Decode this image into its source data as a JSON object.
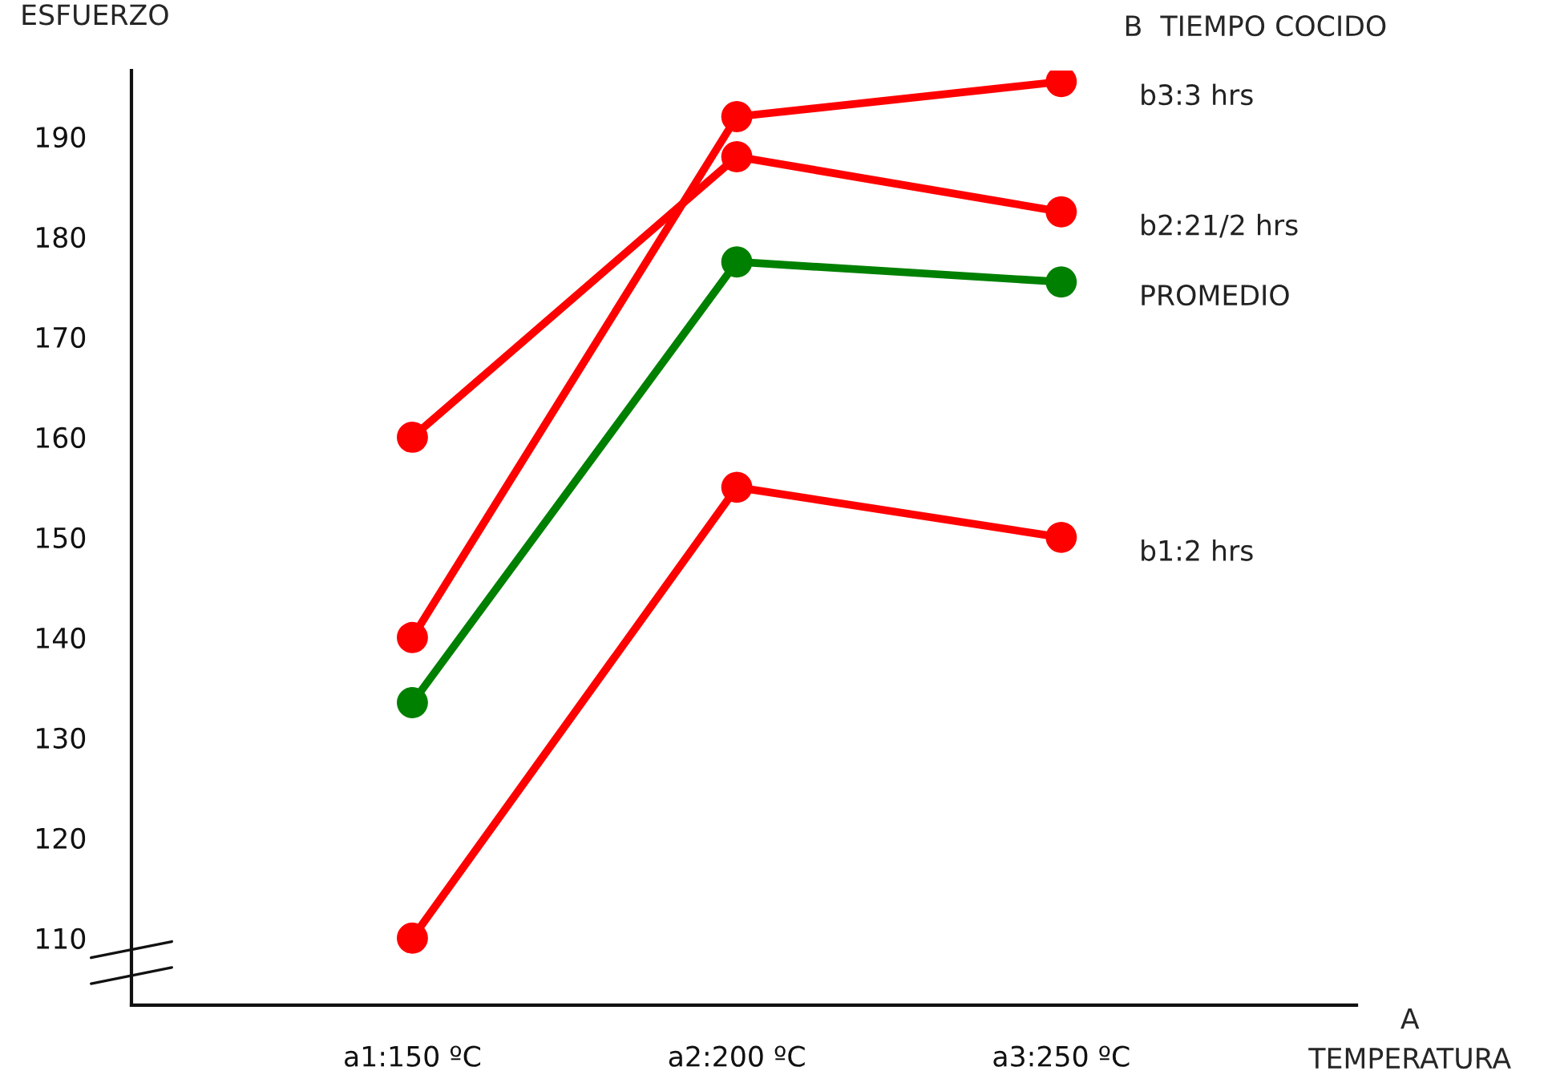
{
  "chart_data": {
    "type": "line",
    "categories": [
      "a1:150 ºC",
      "a2:200 ºC",
      "a3:250 ºC"
    ],
    "series": [
      {
        "name": "b3:3 hrs",
        "color": "#ff0000",
        "values": [
          140,
          192,
          195.5
        ]
      },
      {
        "name": "b2:21/2 hrs",
        "color": "#ff0000",
        "values": [
          160,
          188,
          182.5
        ]
      },
      {
        "name": "PROMEDIO",
        "color": "#008000",
        "values": [
          133.5,
          177.5,
          175.5
        ]
      },
      {
        "name": "b1:2 hrs",
        "color": "#ff0000",
        "values": [
          110,
          155,
          150
        ]
      }
    ],
    "ylabel": "ESFUERZO",
    "xlabel": "A\nTEMPERATURA",
    "legend_title": "B  TIEMPO COCIDO",
    "ylim": [
      103.3,
      196.6
    ],
    "yticks": [
      110,
      120,
      130,
      140,
      150,
      160,
      170,
      180,
      190
    ],
    "grid": false,
    "legend": false,
    "marker": "circle",
    "line_style": "solid"
  }
}
